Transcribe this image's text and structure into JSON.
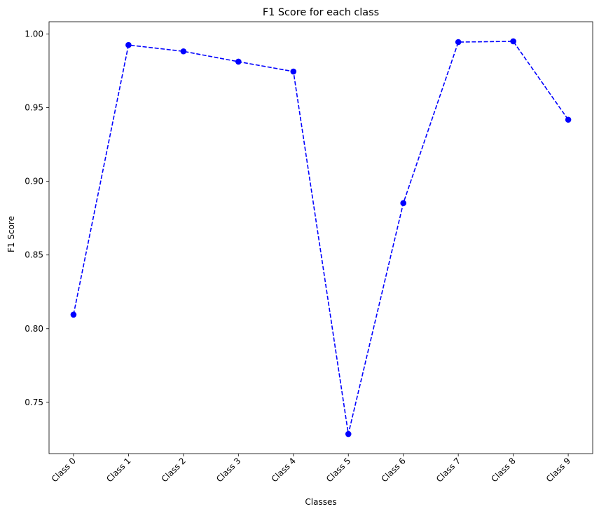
{
  "chart_data": {
    "type": "line",
    "title": "F1 Score for each class",
    "xlabel": "Classes",
    "ylabel": "F1 Score",
    "categories": [
      "Class 0",
      "Class 1",
      "Class 2",
      "Class 3",
      "Class 4",
      "Class 5",
      "Class 6",
      "Class 7",
      "Class 8",
      "Class 9"
    ],
    "series": [
      {
        "values": [
          0.8095,
          0.9925,
          0.9882,
          0.9812,
          0.9745,
          0.7285,
          0.8852,
          0.9945,
          0.995,
          0.9418
        ],
        "color": "#0000ff",
        "line_style": "dashed",
        "marker": "circle"
      }
    ],
    "ylim": [
      0.7152,
      1.0083
    ],
    "yticks": [
      0.75,
      0.8,
      0.85,
      0.9,
      0.95,
      1.0
    ],
    "ytick_labels": [
      "0.75",
      "0.80",
      "0.85",
      "0.90",
      "0.95",
      "1.00"
    ],
    "x_tick_rotation": 45,
    "grid": false,
    "legend": "none"
  }
}
